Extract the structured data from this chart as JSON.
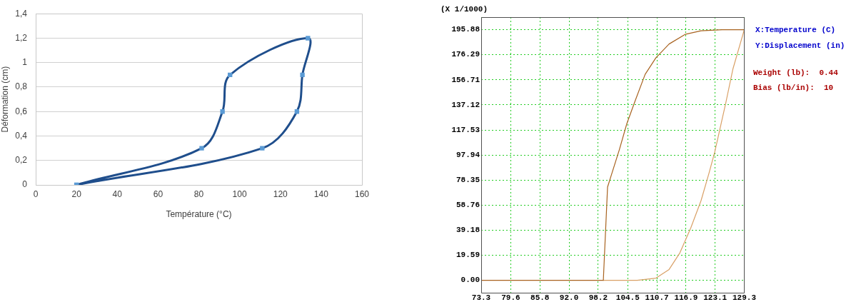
{
  "chart_data": [
    {
      "type": "scatter",
      "xlabel": "Température (°C)",
      "ylabel": "Déformation (cm)",
      "xlim": [
        0,
        160
      ],
      "xticks": [
        0,
        20,
        40,
        60,
        80,
        100,
        120,
        140,
        160
      ],
      "ylim": [
        0,
        1.4
      ],
      "yticks": [
        0,
        {
          "value": 0.2,
          "label": "0,2"
        },
        {
          "value": 0.4,
          "label": "0,4"
        },
        {
          "value": 0.6,
          "label": "0,6"
        },
        {
          "value": 0.8,
          "label": "0,8"
        },
        1,
        {
          "value": 1.2,
          "label": "1,2"
        },
        {
          "value": 1.4,
          "label": "1,4"
        }
      ],
      "grid": "y",
      "legend": false,
      "marker": "square",
      "line_style": "solid",
      "series": [
        {
          "color": "#1f4e8c",
          "colors": [
            "#5b9bd5",
            "#5b9bd5",
            "#5b9bd5",
            "#5b9bd5",
            "#5b9bd5",
            "#5b9bd5",
            "#5b9bd5",
            "#5b9bd5",
            "#5b9bd5"
          ],
          "x": [
            20,
            81.4,
            91.6,
            95.3,
            133.5,
            130.8,
            128.1,
            111.1,
            20
          ],
          "values": [
            0,
            0.3,
            0.6,
            0.9,
            1.2,
            0.9,
            0.6,
            0.3,
            0
          ]
        }
      ]
    },
    {
      "type": "line",
      "xlabel": "X:Temperature (C)",
      "ylabel": "Y:Displacement (in)",
      "annotations": [
        "(X 1/1000)",
        "Weight (lb):  0.44",
        "Bias (lb/in):  10"
      ],
      "xlim": [
        73.3,
        129.3
      ],
      "xticks": [
        73.3,
        79.6,
        85.8,
        {
          "value": 92,
          "label": "92.0"
        },
        98.2,
        104.5,
        110.7,
        116.9,
        123.1,
        129.3
      ],
      "ylim": [
        -9.7,
        205.7
      ],
      "yticks": [
        {
          "value": 0,
          "label": "0.00"
        },
        19.59,
        39.18,
        58.76,
        78.35,
        97.94,
        117.53,
        137.12,
        156.71,
        176.29,
        195.88
      ],
      "grid": true,
      "legend": false,
      "marker": "none",
      "line_style": "solid",
      "series": [
        {
          "color": "#a8621f",
          "x": [
            73.3,
            99.3,
            100.2,
            102.7,
            104.3,
            106.0,
            108.2,
            110.5,
            113.3,
            116.7,
            120.1,
            124.6,
            129.3
          ],
          "values": [
            0,
            0,
            72.9,
            102,
            122.4,
            139.6,
            161,
            174,
            184.7,
            192.2,
            195,
            195.9,
            195.9
          ]
        },
        {
          "color": "#d9a066",
          "x": [
            99.3,
            106.5,
            110.5,
            113.3,
            115.6,
            117.9,
            120.1,
            121.8,
            123.0,
            125.3,
            126.9,
            129.3
          ],
          "values": [
            0,
            0,
            1.7,
            8.5,
            21.5,
            40.8,
            62.3,
            83.8,
            100,
            137.5,
            165.4,
            195.9
          ]
        }
      ]
    }
  ]
}
